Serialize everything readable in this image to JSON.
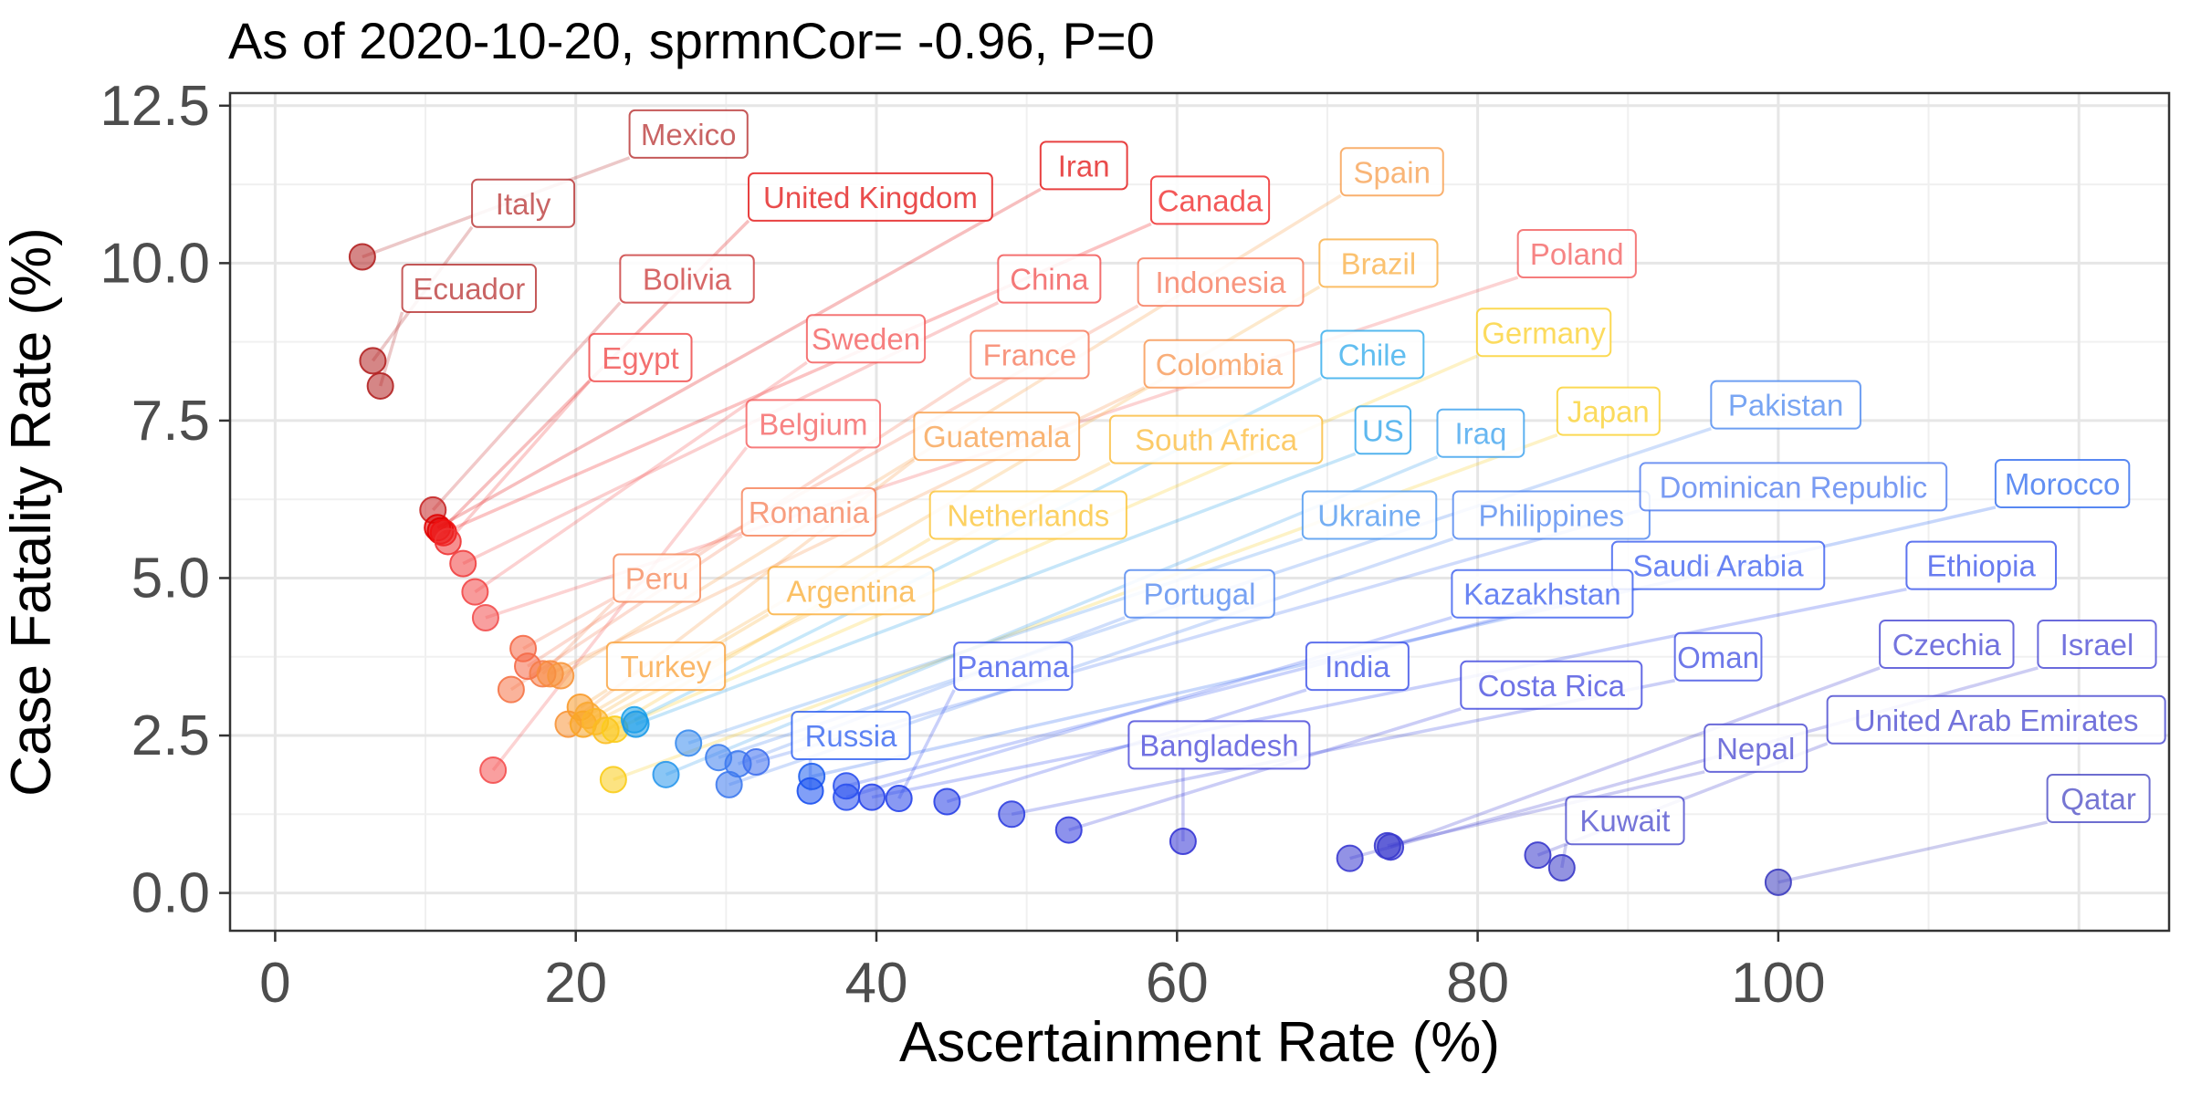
{
  "chart_data": {
    "type": "scatter",
    "title": "As of 2020-10-20, sprmnCor= -0.96, P=0",
    "xlabel": "Ascertainment Rate (%)",
    "ylabel": "Case Fatality Rate (%)",
    "xlim": [
      -3,
      126
    ],
    "ylim": [
      -0.6,
      12.7
    ],
    "xticks": [
      0,
      20,
      40,
      60,
      80,
      100
    ],
    "xtick_labels": [
      "0",
      "20",
      "40",
      "60",
      "80",
      "100"
    ],
    "yticks": [
      0,
      2.5,
      5,
      7.5,
      10,
      12.5
    ],
    "ytick_labels": [
      "0.0",
      "2.5",
      "5.0",
      "7.5",
      "10.0",
      "12.5"
    ],
    "grid": true,
    "legend": "none",
    "points": [
      {
        "name": "Mexico",
        "x": 5.8,
        "y": 10.1,
        "lx": 27.5,
        "ly": 12.05,
        "color": "#b22222"
      },
      {
        "name": "Italy",
        "x": 6.5,
        "y": 8.45,
        "lx": 16.5,
        "ly": 10.95,
        "color": "#b22222"
      },
      {
        "name": "Ecuador",
        "x": 7.0,
        "y": 8.05,
        "lx": 12.9,
        "ly": 9.6,
        "color": "#b22222"
      },
      {
        "name": "Bolivia",
        "x": 10.5,
        "y": 6.08,
        "lx": 27.4,
        "ly": 9.75,
        "color": "#c62828"
      },
      {
        "name": "Iran",
        "x": 10.8,
        "y": 5.8,
        "lx": 53.8,
        "ly": 11.55,
        "color": "#e00000"
      },
      {
        "name": "United Kingdom",
        "x": 11.0,
        "y": 5.75,
        "lx": 39.6,
        "ly": 11.05,
        "color": "#e00000"
      },
      {
        "name": "Canada",
        "x": 11.2,
        "y": 5.72,
        "lx": 62.2,
        "ly": 11.0,
        "color": "#ee1111"
      },
      {
        "name": "Egypt",
        "x": 11.5,
        "y": 5.58,
        "lx": 24.3,
        "ly": 8.5,
        "color": "#ee3333"
      },
      {
        "name": "China",
        "x": 12.5,
        "y": 5.23,
        "lx": 51.5,
        "ly": 9.75,
        "color": "#f04040"
      },
      {
        "name": "Sweden",
        "x": 13.3,
        "y": 4.78,
        "lx": 39.3,
        "ly": 8.8,
        "color": "#f24848"
      },
      {
        "name": "Poland",
        "x": 14.0,
        "y": 4.37,
        "lx": 86.6,
        "ly": 10.15,
        "color": "#f25050"
      },
      {
        "name": "Belgium",
        "x": 14.5,
        "y": 1.95,
        "lx": 35.8,
        "ly": 7.45,
        "color": "#f45050"
      },
      {
        "name": "Indonesia",
        "x": 16.5,
        "y": 3.88,
        "lx": 62.9,
        "ly": 9.7,
        "color": "#f56a48"
      },
      {
        "name": "France",
        "x": 16.8,
        "y": 3.6,
        "lx": 50.2,
        "ly": 8.55,
        "color": "#f56a48"
      },
      {
        "name": "Romania",
        "x": 15.7,
        "y": 3.23,
        "lx": 35.5,
        "ly": 6.05,
        "color": "#f57548"
      },
      {
        "name": "Peru",
        "x": 17.8,
        "y": 3.48,
        "lx": 25.4,
        "ly": 5.0,
        "color": "#f57c48"
      },
      {
        "name": "Colombia",
        "x": 18.3,
        "y": 3.48,
        "lx": 62.8,
        "ly": 8.4,
        "color": "#f78c40"
      },
      {
        "name": "Spain",
        "x": 19.0,
        "y": 3.45,
        "lx": 74.3,
        "ly": 11.45,
        "color": "#f7963d"
      },
      {
        "name": "Guatemala",
        "x": 19.5,
        "y": 2.68,
        "lx": 48.0,
        "ly": 7.25,
        "color": "#f7953a"
      },
      {
        "name": "Turkey",
        "x": 20.3,
        "y": 2.95,
        "lx": 26.0,
        "ly": 3.6,
        "color": "#f99a2a"
      },
      {
        "name": "Brazil",
        "x": 20.8,
        "y": 2.82,
        "lx": 73.4,
        "ly": 10.0,
        "color": "#f9a833"
      },
      {
        "name": "Argentina",
        "x": 20.5,
        "y": 2.68,
        "lx": 38.3,
        "ly": 4.8,
        "color": "#f9a625"
      },
      {
        "name": "South Africa",
        "x": 21.3,
        "y": 2.72,
        "lx": 62.6,
        "ly": 7.2,
        "color": "#fbb52a"
      },
      {
        "name": "Netherlands",
        "x": 22.0,
        "y": 2.58,
        "lx": 50.1,
        "ly": 6.0,
        "color": "#fbbd20"
      },
      {
        "name": "Germany",
        "x": 22.6,
        "y": 2.6,
        "lx": 84.4,
        "ly": 8.9,
        "color": "#fbcc1a"
      },
      {
        "name": "Japan",
        "x": 22.5,
        "y": 1.8,
        "lx": 88.7,
        "ly": 7.65,
        "color": "#f9cc1a"
      },
      {
        "name": "Chile",
        "x": 23.9,
        "y": 2.75,
        "lx": 73.0,
        "ly": 8.55,
        "color": "#1ea3ea"
      },
      {
        "name": "US",
        "x": 24.0,
        "y": 2.68,
        "lx": 73.7,
        "ly": 7.35,
        "color": "#1a9ae8"
      },
      {
        "name": "Iraq",
        "x": 26.0,
        "y": 1.88,
        "lx": 80.2,
        "ly": 7.3,
        "color": "#2a98ec"
      },
      {
        "name": "Ukraine",
        "x": 27.5,
        "y": 2.38,
        "lx": 72.8,
        "ly": 6.0,
        "color": "#3a8cee"
      },
      {
        "name": "Pakistan",
        "x": 29.5,
        "y": 2.15,
        "lx": 100.5,
        "ly": 7.75,
        "color": "#3e7fee"
      },
      {
        "name": "Philippines",
        "x": 30.2,
        "y": 1.72,
        "lx": 84.9,
        "ly": 6.0,
        "color": "#3e7aee"
      },
      {
        "name": "Portugal",
        "x": 30.8,
        "y": 2.05,
        "lx": 61.5,
        "ly": 4.75,
        "color": "#3e7aee"
      },
      {
        "name": "Dominican Republic",
        "x": 32.0,
        "y": 2.08,
        "lx": 101.0,
        "ly": 6.45,
        "color": "#4070ee"
      },
      {
        "name": "Morocco",
        "x": 35.7,
        "y": 1.85,
        "lx": 118.9,
        "ly": 6.5,
        "color": "#2060ee"
      },
      {
        "name": "Russia",
        "x": 35.6,
        "y": 1.62,
        "lx": 38.3,
        "ly": 2.5,
        "color": "#1a50f0"
      },
      {
        "name": "Saudi Arabia",
        "x": 38.0,
        "y": 1.7,
        "lx": 96.0,
        "ly": 5.2,
        "color": "#2a50ee"
      },
      {
        "name": "Kazakhstan",
        "x": 38.0,
        "y": 1.52,
        "lx": 84.3,
        "ly": 4.75,
        "color": "#2a50ee"
      },
      {
        "name": "Ethiopia",
        "x": 39.7,
        "y": 1.52,
        "lx": 113.5,
        "ly": 5.2,
        "color": "#2845ea"
      },
      {
        "name": "Panama",
        "x": 41.5,
        "y": 1.5,
        "lx": 49.1,
        "ly": 3.6,
        "color": "#2845ea"
      },
      {
        "name": "India",
        "x": 44.7,
        "y": 1.45,
        "lx": 72.0,
        "ly": 3.6,
        "color": "#2840e6"
      },
      {
        "name": "Oman",
        "x": 49.0,
        "y": 1.25,
        "lx": 96.0,
        "ly": 3.75,
        "color": "#3040e0"
      },
      {
        "name": "Costa Rica",
        "x": 52.8,
        "y": 1.0,
        "lx": 84.9,
        "ly": 3.3,
        "color": "#3038dc"
      },
      {
        "name": "Bangladesh",
        "x": 60.4,
        "y": 0.82,
        "lx": 62.8,
        "ly": 2.35,
        "color": "#3535d5"
      },
      {
        "name": "Czechia",
        "x": 74.2,
        "y": 0.73,
        "lx": 111.2,
        "ly": 3.95,
        "color": "#3838d0"
      },
      {
        "name": "Israel",
        "x": 71.5,
        "y": 0.55,
        "lx": 121.2,
        "ly": 3.95,
        "color": "#3838d0"
      },
      {
        "name": "United Arab Emirates",
        "x": 84.0,
        "y": 0.6,
        "lx": 114.5,
        "ly": 2.75,
        "color": "#3838cc"
      },
      {
        "name": "Nepal",
        "x": 74.0,
        "y": 0.75,
        "lx": 98.5,
        "ly": 2.3,
        "color": "#3838cc"
      },
      {
        "name": "Kuwait",
        "x": 85.6,
        "y": 0.4,
        "lx": 89.8,
        "ly": 1.15,
        "color": "#3a3ac8"
      },
      {
        "name": "Qatar",
        "x": 100.0,
        "y": 0.17,
        "lx": 121.3,
        "ly": 1.5,
        "color": "#3c3cc0"
      }
    ]
  }
}
